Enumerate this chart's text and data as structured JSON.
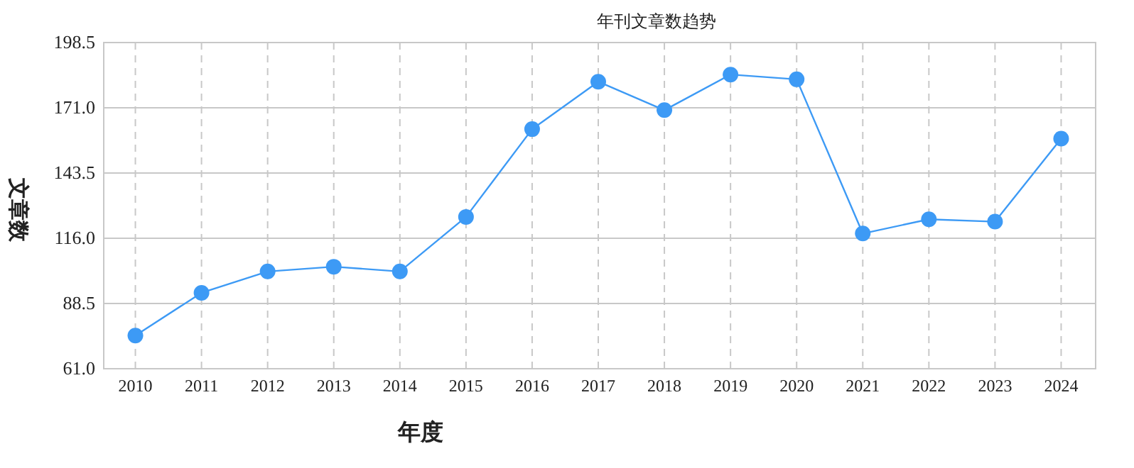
{
  "chart_data": {
    "type": "line",
    "title": "年刊文章数趋势",
    "xlabel": "年度",
    "ylabel": "文章数",
    "categories": [
      "2010",
      "2011",
      "2012",
      "2013",
      "2014",
      "2015",
      "2016",
      "2017",
      "2018",
      "2019",
      "2020",
      "2021",
      "2022",
      "2023",
      "2024"
    ],
    "series": [
      {
        "color": "#3d9af5",
        "values": [
          75,
          93,
          102,
          104,
          102,
          125,
          162,
          182,
          170,
          185,
          183,
          118,
          124,
          123,
          158
        ]
      }
    ],
    "ylim": [
      61,
      198.5
    ],
    "yticks": [
      {
        "value": 61,
        "label": "61.0"
      },
      {
        "value": 88.5,
        "label": "88.5"
      },
      {
        "value": 116,
        "label": "116.0"
      },
      {
        "value": 143.5,
        "label": "143.5"
      },
      {
        "value": 171,
        "label": "171.0"
      },
      {
        "value": 198.5,
        "label": "198.5"
      }
    ],
    "grid": true,
    "marker": "circle",
    "line_style": "solid"
  }
}
